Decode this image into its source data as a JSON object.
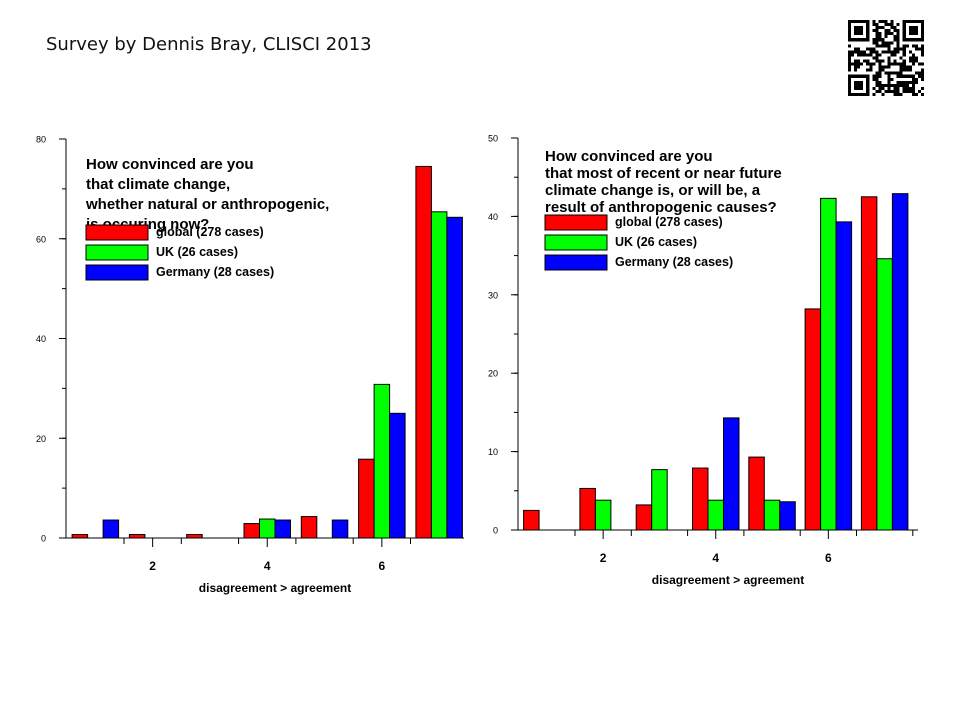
{
  "slide": {
    "title": "Survey by Dennis Bray, CLISCI 2013"
  },
  "qr_code": {
    "icon": "qr-code-icon"
  },
  "colors": {
    "global": "#ff0000",
    "uk": "#00ff00",
    "germany": "#0000ff",
    "axis": "#000000"
  },
  "chart_data": [
    {
      "type": "bar",
      "title": "How convinced are you\nthat climate change,\nwhether natural or anthropogenic,\nis occuring now?",
      "xlabel": "disagreement > agreement",
      "ylabel": "",
      "categories": [
        1,
        2,
        3,
        4,
        5,
        6,
        7
      ],
      "x_ticks": [
        2,
        4,
        6
      ],
      "ylim": [
        0,
        80
      ],
      "y_ticks": [
        0,
        20,
        40,
        60,
        80
      ],
      "y_minor_step": 10,
      "legend_placement": "top-left",
      "series": [
        {
          "name": "global (278 cases)",
          "color": "#ff0000",
          "values": [
            0.7,
            0.7,
            0.7,
            2.9,
            4.3,
            15.8,
            74.5
          ]
        },
        {
          "name": "UK (26 cases)",
          "color": "#00ff00",
          "values": [
            0,
            0,
            0,
            3.8,
            0,
            30.8,
            65.4
          ]
        },
        {
          "name": "Germany (28 cases)",
          "color": "#0000ff",
          "values": [
            3.6,
            0,
            0,
            3.6,
            3.6,
            25.0,
            64.3
          ]
        }
      ]
    },
    {
      "type": "bar",
      "title": "How convinced are you\nthat most of recent or near future\nclimate change is, or will be, a\nresult of anthropogenic causes?",
      "xlabel": "disagreement > agreement",
      "ylabel": "",
      "categories": [
        1,
        2,
        3,
        4,
        5,
        6,
        7
      ],
      "x_ticks": [
        2,
        4,
        6
      ],
      "ylim": [
        0,
        50
      ],
      "y_ticks": [
        0,
        10,
        20,
        30,
        40,
        50
      ],
      "y_minor_step": 5,
      "legend_placement": "top-left",
      "series": [
        {
          "name": "global (278 cases)",
          "color": "#ff0000",
          "values": [
            2.5,
            5.3,
            3.2,
            7.9,
            9.3,
            28.2,
            42.5
          ]
        },
        {
          "name": "UK (26 cases)",
          "color": "#00ff00",
          "values": [
            0,
            3.8,
            7.7,
            3.8,
            3.8,
            42.3,
            34.6
          ]
        },
        {
          "name": "Germany (28 cases)",
          "color": "#0000ff",
          "values": [
            0,
            0,
            0,
            14.3,
            3.6,
            39.3,
            42.9
          ]
        }
      ]
    }
  ]
}
